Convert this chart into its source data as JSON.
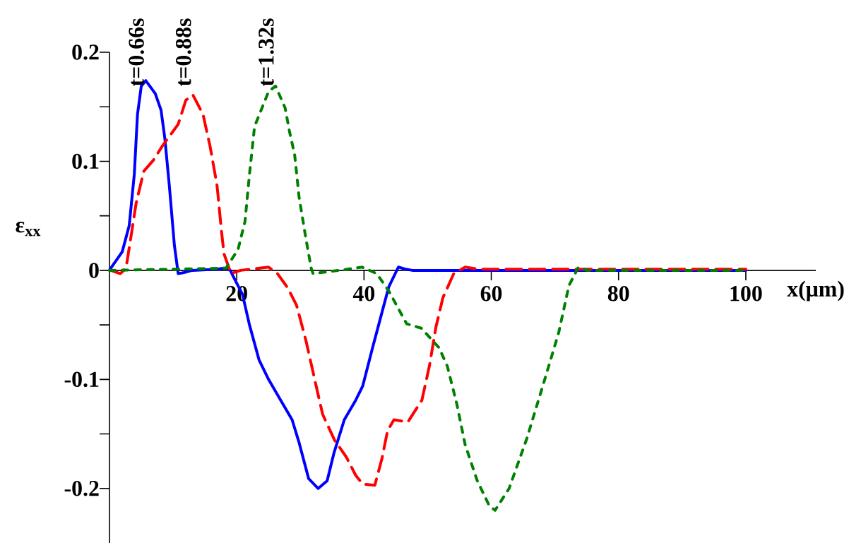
{
  "chart_data": {
    "type": "line",
    "xlabel": "x(μm)",
    "ylabel": "ε$_{xx}$",
    "xlim": [
      0,
      111
    ],
    "ylim": [
      -0.25,
      0.2
    ],
    "xticks": [
      20,
      40,
      60,
      80,
      100
    ],
    "yticks": [
      -0.2,
      {
        "value": -0.15,
        "label": null
      },
      -0.1,
      {
        "value": -0.05,
        "label": null
      },
      0,
      {
        "value": 0.05,
        "label": null
      },
      0.1,
      {
        "value": 0.15,
        "label": null
      },
      0.2
    ],
    "series": [
      {
        "name": "t=0.66s",
        "color": "#0000ff",
        "line_style": "solid",
        "x": [
          0,
          0.2,
          2,
          3.1,
          3.9,
          4.4,
          5,
          5.7,
          7.2,
          8.1,
          8.7,
          9.4,
          10.2,
          10.8,
          11.7,
          13,
          16.9,
          18,
          19,
          19.4,
          20.9,
          22,
          23.5,
          25,
          26.9,
          28.7,
          29.8,
          31.3,
          32.8,
          34.2,
          35.3,
          36.9,
          38.7,
          39.8,
          41.3,
          42.8,
          43.9,
          45.4,
          46.6,
          47.6,
          100
        ],
        "values": [
          0,
          0.002,
          0.017,
          0.041,
          0.088,
          0.143,
          0.169,
          0.174,
          0.162,
          0.147,
          0.121,
          0.078,
          0.023,
          -0.003,
          -0.002,
          0,
          0.001,
          0.002,
          0,
          -0.005,
          -0.022,
          -0.05,
          -0.082,
          -0.1,
          -0.119,
          -0.137,
          -0.158,
          -0.191,
          -0.2,
          -0.193,
          -0.167,
          -0.137,
          -0.119,
          -0.106,
          -0.072,
          -0.039,
          -0.015,
          0.003,
          0.001,
          0,
          0
        ]
      },
      {
        "name": "t=0.88s",
        "color": "#ff0000",
        "line_style": "dashed",
        "x": [
          0.2,
          1.7,
          2.6,
          3.3,
          4.2,
          5.4,
          6.9,
          8.3,
          10.8,
          12,
          13.1,
          14.7,
          15.8,
          16.9,
          17.6,
          18,
          19.1,
          20.6,
          25,
          26.4,
          28,
          29.4,
          30.9,
          32.4,
          33.5,
          35.4,
          37.2,
          38.7,
          39.8,
          41.7,
          42.8,
          43.7,
          44.7,
          46.9,
          49.1,
          50.3,
          51.3,
          52.4,
          54.1,
          55.9,
          58,
          100
        ],
        "values": [
          0,
          -0.003,
          0.002,
          0.028,
          0.062,
          0.091,
          0.101,
          0.114,
          0.134,
          0.156,
          0.161,
          0.143,
          0.114,
          0.078,
          0.036,
          0.015,
          -0.003,
          0,
          0.003,
          -0.003,
          -0.016,
          -0.032,
          -0.065,
          -0.104,
          -0.132,
          -0.156,
          -0.171,
          -0.188,
          -0.196,
          -0.197,
          -0.173,
          -0.147,
          -0.137,
          -0.139,
          -0.119,
          -0.087,
          -0.052,
          -0.025,
          -0.003,
          0.003,
          0.001,
          0.001
        ]
      },
      {
        "name": "t=1.32s",
        "color": "#008000",
        "line_style": "dotted",
        "x": [
          0,
          18.3,
          20.2,
          21.3,
          22,
          22.8,
          23.7,
          25,
          26.1,
          27.6,
          28.3,
          29.1,
          29.8,
          30.9,
          31.7,
          32,
          36,
          39.7,
          42,
          43.9,
          46.7,
          49,
          51.8,
          53.1,
          54.6,
          55.9,
          57.8,
          59.7,
          60.6,
          62.8,
          65.6,
          68.3,
          70.6,
          72.2,
          73.7,
          75,
          100
        ],
        "values": [
          0,
          0.002,
          0.019,
          0.045,
          0.088,
          0.132,
          0.145,
          0.164,
          0.169,
          0.149,
          0.127,
          0.106,
          0.067,
          0.028,
          0.002,
          -0.003,
          0,
          0.003,
          -0.003,
          -0.019,
          -0.049,
          -0.053,
          -0.071,
          -0.088,
          -0.123,
          -0.16,
          -0.193,
          -0.216,
          -0.22,
          -0.2,
          -0.154,
          -0.102,
          -0.057,
          -0.014,
          0.003,
          0,
          0
        ]
      }
    ]
  }
}
